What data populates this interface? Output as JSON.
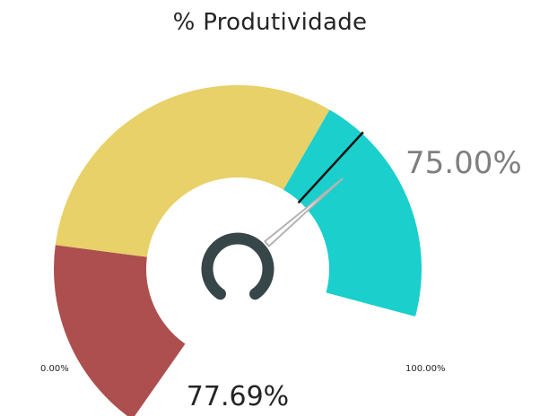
{
  "title": "% Produtividade",
  "gauge": {
    "value_label": "77.69%",
    "target_label": "75.00%",
    "min_label": "0.00%",
    "max_label": "100.00%",
    "min": 0,
    "max": 100,
    "value": 77.69,
    "target": 75,
    "bands": [
      {
        "from": 0,
        "to": 25,
        "color": "#ad4f4f"
      },
      {
        "from": 25,
        "to": 70,
        "color": "#e7d168"
      },
      {
        "from": 70,
        "to": 100,
        "color": "#1acfcc"
      }
    ],
    "needle_color": "#b3b3b3",
    "target_color": "#111111",
    "hub_color": "#374649"
  }
}
